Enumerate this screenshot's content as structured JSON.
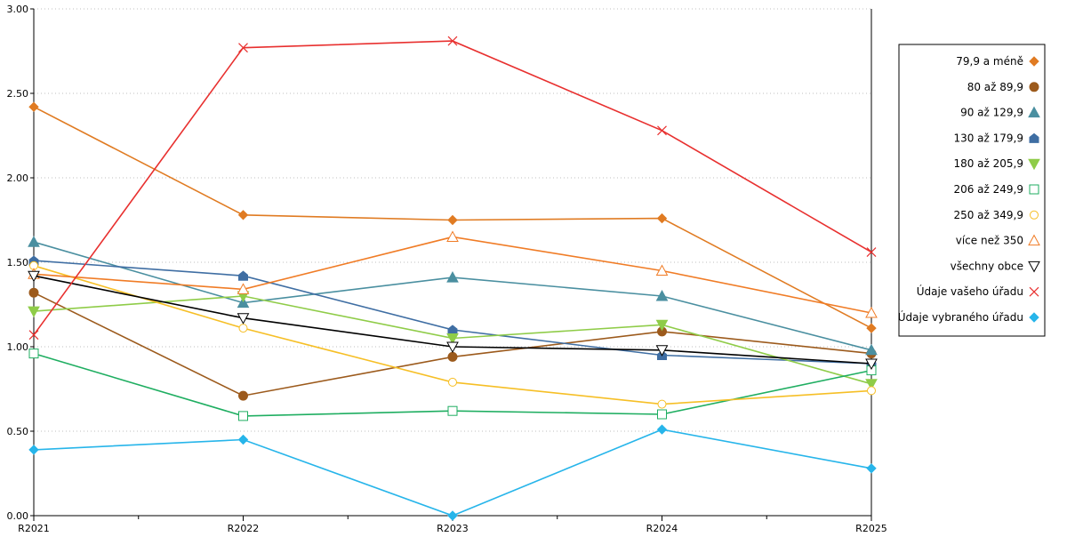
{
  "chart_data": {
    "type": "line",
    "title": "",
    "xlabel": "",
    "ylabel": "",
    "categories": [
      "R2021",
      "R2022",
      "R2023",
      "R2024",
      "R2025"
    ],
    "ylim": [
      0,
      3
    ],
    "yticks": [
      0,
      0.5,
      1,
      1.5,
      2,
      2.5,
      3
    ],
    "ytick_labels": [
      "0.00",
      "0.50",
      "1.00",
      "1.50",
      "2.00",
      "2.50",
      "3.00"
    ],
    "grid": "horizontal-dotted",
    "legend_position": "right",
    "series": [
      {
        "name": "79,9 a méně",
        "color": "#e07b22",
        "marker": "diamond-filled",
        "values": [
          2.42,
          1.78,
          1.75,
          1.76,
          1.11
        ]
      },
      {
        "name": "80 až 89,9",
        "color": "#9c5a1c",
        "marker": "circle-filled",
        "values": [
          1.32,
          0.71,
          0.94,
          1.09,
          0.96
        ]
      },
      {
        "name": "90 až 129,9",
        "color": "#4a8fa0",
        "marker": "triangle-up-filled",
        "values": [
          1.62,
          1.26,
          1.41,
          1.3,
          0.98
        ]
      },
      {
        "name": "130 až 179,9",
        "color": "#3f6ea3",
        "marker": "house-filled",
        "values": [
          1.51,
          1.42,
          1.1,
          0.95,
          0.9
        ]
      },
      {
        "name": "180 až 205,9",
        "color": "#8fcc48",
        "marker": "triangle-down-filled",
        "values": [
          1.21,
          1.3,
          1.05,
          1.13,
          0.78
        ]
      },
      {
        "name": "206 až 249,9",
        "color": "#1fae61",
        "marker": "square-open",
        "values": [
          0.96,
          0.59,
          0.62,
          0.6,
          0.86
        ]
      },
      {
        "name": "250 až 349,9",
        "color": "#f6bf26",
        "marker": "circle-open",
        "values": [
          1.48,
          1.11,
          0.79,
          0.66,
          0.74
        ]
      },
      {
        "name": "více než 350",
        "color": "#f07c26",
        "marker": "triangle-up-open",
        "values": [
          1.43,
          1.34,
          1.65,
          1.45,
          1.2
        ]
      },
      {
        "name": "všechny obce",
        "color": "#000000",
        "marker": "triangle-down-open",
        "values": [
          1.42,
          1.17,
          1.0,
          0.98,
          0.9
        ]
      },
      {
        "name": "Údaje vašeho úřadu",
        "color": "#e8302f",
        "marker": "cross",
        "values": [
          1.07,
          2.77,
          2.81,
          2.28,
          1.56
        ]
      },
      {
        "name": "Údaje vybraného úřadu",
        "color": "#27b5ea",
        "marker": "diamond-filled",
        "values": [
          0.39,
          0.45,
          0.0,
          0.51,
          0.28
        ]
      }
    ]
  }
}
